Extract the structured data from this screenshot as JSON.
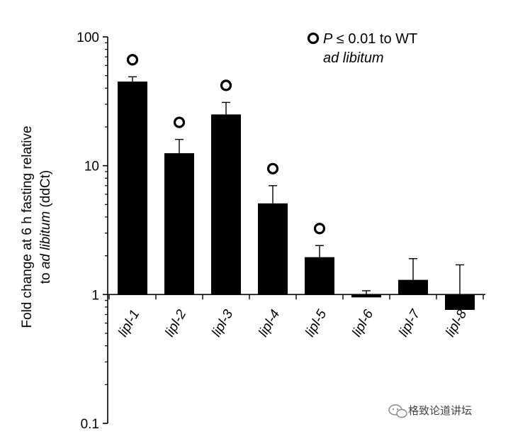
{
  "chart_data": {
    "type": "bar",
    "yscale": "log",
    "ylim": [
      0.1,
      100
    ],
    "yticks": [
      0.1,
      1,
      10,
      100
    ],
    "ytick_labels": [
      "0.1",
      "1",
      "10",
      "100"
    ],
    "ylabel_line1": "Fold change at 6 h fasting relative",
    "ylabel_line2_prefix": "to ",
    "ylabel_line2_italic": "ad libitum",
    "ylabel_line2_suffix": " (ddCt)",
    "categories": [
      "lipl-1",
      "lipl-2",
      "lipl-3",
      "lipl-4",
      "lipl-5",
      "lipl-6",
      "lipl-7",
      "lipl-8"
    ],
    "values": [
      45,
      12.5,
      25,
      5.1,
      1.95,
      0.95,
      1.3,
      0.76
    ],
    "error_upper": [
      49,
      16,
      31,
      7,
      2.4,
      1.07,
      1.9,
      1.7
    ],
    "significant": [
      true,
      true,
      true,
      true,
      true,
      false,
      false,
      false
    ],
    "baseline": 1,
    "bar_color": "#000000",
    "legend": {
      "marker": "circle-open",
      "line1": "P ≤ 0.01 to WT",
      "line1_italic_part": "P",
      "line1_rest": " ≤ 0.01 to WT",
      "line2": "ad libitum"
    }
  },
  "watermark": {
    "text": "格致论道讲坛",
    "icon": "wechat-icon"
  }
}
